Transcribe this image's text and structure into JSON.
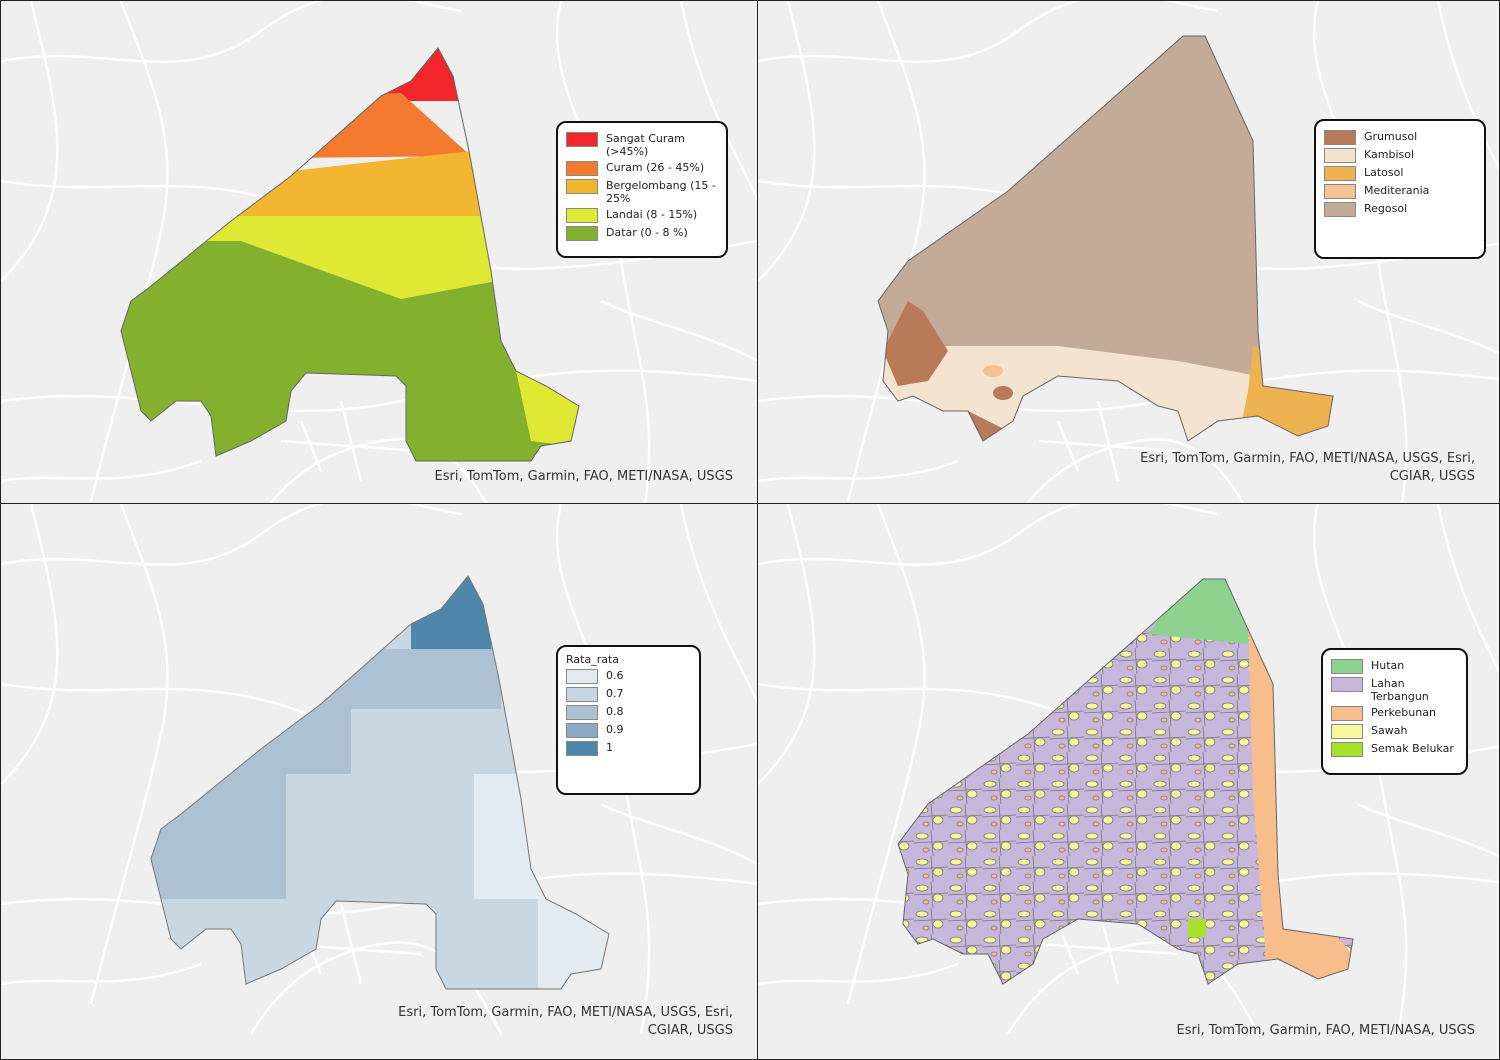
{
  "panels": [
    {
      "legend": {
        "items": [
          {
            "label": "Sangat Curam (>45%)",
            "color": "#f0262b"
          },
          {
            "label": "Curam (26 - 45%)",
            "color": "#f47a30"
          },
          {
            "label": "Bergelombang (15 - 25%",
            "color": "#f2b630"
          },
          {
            "label": "Landai (8 - 15%)",
            "color": "#dfe832"
          },
          {
            "label": "Datar (0 - 8 %)",
            "color": "#84b12d"
          }
        ]
      },
      "attribution": "Esri, TomTom, Garmin, FAO, METI/NASA, USGS"
    },
    {
      "legend": {
        "items": [
          {
            "label": "Grumusol",
            "color": "#b87a58"
          },
          {
            "label": "Kambisol",
            "color": "#f3e3cf"
          },
          {
            "label": "Latosol",
            "color": "#efb250"
          },
          {
            "label": "Mediterania",
            "color": "#f5c392"
          },
          {
            "label": "Regosol",
            "color": "#c4ab98"
          }
        ]
      },
      "attribution": "Esri, TomTom, Garmin, FAO, METI/NASA, USGS, Esri, CGIAR, USGS"
    },
    {
      "legend": {
        "title": "Rata_rata",
        "items": [
          {
            "label": "0.6",
            "color": "#e2ebf1"
          },
          {
            "label": "0.7",
            "color": "#c9d7e3"
          },
          {
            "label": "0.8",
            "color": "#adc1d4"
          },
          {
            "label": "0.9",
            "color": "#8fa9c4"
          },
          {
            "label": "1",
            "color": "#4f86ab"
          }
        ]
      },
      "attribution": "Esri, TomTom, Garmin, FAO, METI/NASA, USGS, Esri, CGIAR, USGS"
    },
    {
      "legend": {
        "items": [
          {
            "label": "Hutan",
            "color": "#8fd18f"
          },
          {
            "label": "Lahan Terbangun",
            "color": "#c8b7dc"
          },
          {
            "label": "Perkebunan",
            "color": "#f7be8c"
          },
          {
            "label": "Sawah",
            "color": "#f9f79d"
          },
          {
            "label": "Semak Belukar",
            "color": "#a6e22a"
          }
        ]
      },
      "attribution": "Esri, TomTom, Garmin, FAO, METI/NASA, USGS"
    }
  ]
}
